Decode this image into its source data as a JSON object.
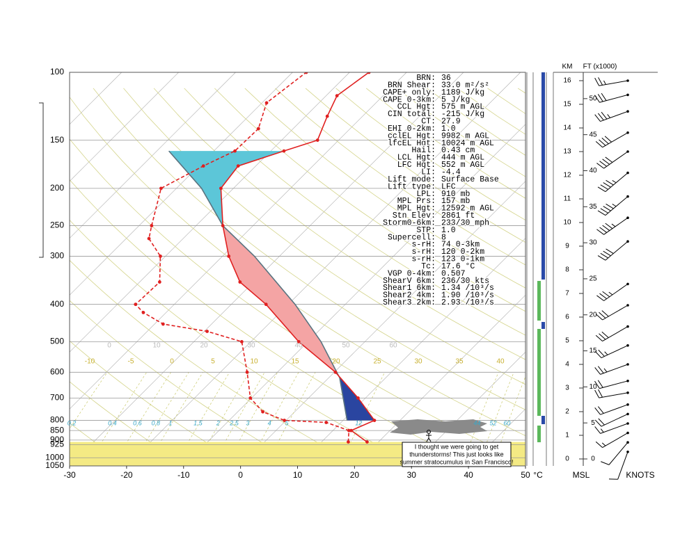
{
  "chart_data": {
    "type": "skewt",
    "xlim": [
      -30,
      50
    ],
    "xticks": [
      -30,
      -20,
      -10,
      0,
      10,
      20,
      30,
      40,
      50
    ],
    "x_unit": "°C",
    "ylim": [
      100,
      1050
    ],
    "yticks": [
      100,
      150,
      200,
      250,
      300,
      400,
      500,
      600,
      700,
      800,
      850,
      900,
      925,
      1000,
      1050
    ],
    "log_y": true,
    "skew": 1,
    "temperature": {
      "color": "#e02020",
      "pressure": [
        910,
        850,
        800,
        700,
        600,
        500,
        400,
        350,
        300,
        250,
        200,
        175,
        160,
        150,
        130,
        115,
        100
      ],
      "values": [
        18,
        13.2,
        15.5,
        8.7,
        0.2,
        -11.6,
        -23.9,
        -32.4,
        -38.9,
        -45.3,
        -52.2,
        -53.1,
        -47.7,
        -43.7,
        -46.2,
        -48.1,
        -46.6
      ]
    },
    "dewpoint": {
      "color": "#e02020",
      "pressure": [
        910,
        850,
        810,
        800,
        760,
        700,
        600,
        500,
        470,
        450,
        420,
        400,
        350,
        300,
        270,
        250,
        200,
        175,
        160,
        140,
        120,
        100
      ],
      "values": [
        14.7,
        12.8,
        7.4,
        -0.3,
        -5.6,
        -10.2,
        -15.3,
        -21.6,
        -29.5,
        -38.5,
        -44,
        -46.8,
        -46.5,
        -50.9,
        -56,
        -57.8,
        -62.7,
        -59.2,
        -56.3,
        -56.1,
        -59.2,
        -57.6
      ]
    },
    "parcel": {
      "color": "#5a7480",
      "pressure": [
        800,
        620,
        500,
        400,
        300,
        250,
        200,
        160
      ],
      "values": [
        10.7,
        1.9,
        -7.7,
        -18.8,
        -34.4,
        -45.3,
        -55.6,
        -67.9
      ]
    },
    "mixing_ratio_labels": [
      0.2,
      0.4,
      0.6,
      0.8,
      1,
      1.5,
      2,
      2.5,
      3,
      4,
      5,
      12,
      44,
      52,
      60
    ],
    "moist_adiabat_labels": [
      -10,
      -5,
      0,
      5,
      10,
      15,
      20,
      25,
      30,
      35,
      40
    ],
    "dry_adiabat_labels": [
      0,
      10,
      20,
      30,
      40,
      50,
      60
    ]
  },
  "indices": [
    [
      "BRN:",
      "36"
    ],
    [
      "BRN Shear:",
      "33.0 m²/s²"
    ],
    [
      "CAPE+ only:",
      "1189 J/kg"
    ],
    [
      "CAPE 0-3km:",
      "5 J/kg"
    ],
    [
      "CCL Hgt:",
      "575 m AGL"
    ],
    [
      "CIN total:",
      "-215 J/kg"
    ],
    [
      "CT:",
      "27.9"
    ],
    [
      "EHI 0-2km:",
      "1.0"
    ],
    [
      "cclEL Hgt:",
      "9982 m AGL"
    ],
    [
      "lfcEL Hgt:",
      "10024 m AGL"
    ],
    [
      "Hail:",
      "0.43 cm"
    ],
    [
      "LCL Hgt:",
      "444 m AGL"
    ],
    [
      "LFC Hgt:",
      "552 m AGL"
    ],
    [
      "LI:",
      "-4.4"
    ],
    [
      "Lift mode:",
      "Surface Base"
    ],
    [
      "Lift type:",
      "LFC"
    ],
    [
      "LPL:",
      "910 mb"
    ],
    [
      "MPL Prs:",
      "157 mb"
    ],
    [
      "MPL Hgt:",
      "12592 m AGL"
    ],
    [
      "Stn Elev:",
      "2861 ft"
    ],
    [
      "Storm0-6km:",
      "233/30 mph"
    ],
    [
      "STP:",
      "1.0"
    ],
    [
      "Supercell:",
      "8"
    ],
    [
      "s-rH:",
      "74 0-3km"
    ],
    [
      "s-rH:",
      "120 0-2km"
    ],
    [
      "s-rH:",
      "123 0-1km"
    ],
    [
      "Tc:",
      "17.6 °C"
    ],
    [
      "VGP 0-4km:",
      "0.507"
    ],
    [
      "ShearV 6km:",
      "236/30 kts"
    ],
    [
      "Shear1 6km:",
      "1.34 /10³/s"
    ],
    [
      "Shear2 4km:",
      "1.90 /10³/s"
    ],
    [
      "Shear3 2km:",
      "2.93 /10³/s"
    ]
  ],
  "annotation": [
    "I thought we were going to get",
    "thunderstorms!  This just looks like",
    "summer stratocumulus in San Francisco!"
  ],
  "height_panel": {
    "km_label": "KM",
    "ft_label": "FT (x1000)",
    "bottom_label": "MSL",
    "wind_label": "KNOTS",
    "km_ticks": [
      0,
      1,
      2,
      3,
      4,
      5,
      6,
      7,
      8,
      9,
      10,
      11,
      12,
      13,
      14,
      15,
      16
    ],
    "ft_ticks": [
      0,
      5,
      10,
      15,
      20,
      25,
      30,
      35,
      40,
      45,
      50
    ]
  },
  "winds": {
    "height_km": [
      0.3,
      0.7,
      1.1,
      1.5,
      1.9,
      2.3,
      2.8,
      3.3,
      4,
      4.8,
      5.6,
      6.5,
      7.4,
      9.2,
      10.2,
      11.1,
      12.1,
      13,
      13.8,
      14.7,
      15.4,
      16
    ],
    "direction_deg": [
      200,
      220,
      240,
      250,
      245,
      250,
      260,
      255,
      250,
      245,
      240,
      240,
      235,
      230,
      235,
      230,
      230,
      235,
      240,
      250,
      255,
      260
    ],
    "speed_kt": [
      10,
      10,
      15,
      15,
      20,
      20,
      20,
      20,
      25,
      25,
      30,
      30,
      35,
      40,
      45,
      45,
      45,
      40,
      40,
      35,
      30,
      25
    ]
  }
}
